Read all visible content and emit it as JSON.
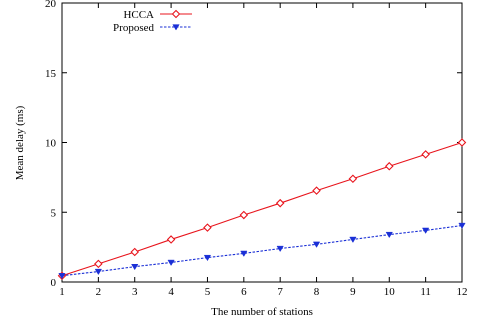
{
  "chart_data": {
    "type": "line",
    "title": "",
    "xlabel": "The number of stations",
    "ylabel": "Mean delay (ms)",
    "xlim": [
      1,
      12
    ],
    "ylim": [
      0,
      20
    ],
    "x": [
      1,
      2,
      3,
      4,
      5,
      6,
      7,
      8,
      9,
      10,
      11,
      12
    ],
    "xticks": [
      "1",
      "2",
      "3",
      "4",
      "5",
      "6",
      "7",
      "8",
      "9",
      "10",
      "11",
      "12"
    ],
    "yticks": [
      "0",
      "5",
      "10",
      "15",
      "20"
    ],
    "grid": false,
    "legend_position": "top-left",
    "series": [
      {
        "name": "HCCA",
        "color": "#e8141c",
        "marker": "diamond-open",
        "line_style": "solid",
        "values": [
          0.45,
          1.3,
          2.15,
          3.05,
          3.9,
          4.8,
          5.65,
          6.55,
          7.4,
          8.3,
          9.15,
          10.0
        ]
      },
      {
        "name": "Proposed",
        "color": "#1a2fd6",
        "marker": "triangle-down-filled",
        "line_style": "dashed",
        "values": [
          0.45,
          0.75,
          1.1,
          1.4,
          1.75,
          2.05,
          2.4,
          2.7,
          3.05,
          3.4,
          3.7,
          4.05
        ]
      }
    ]
  }
}
